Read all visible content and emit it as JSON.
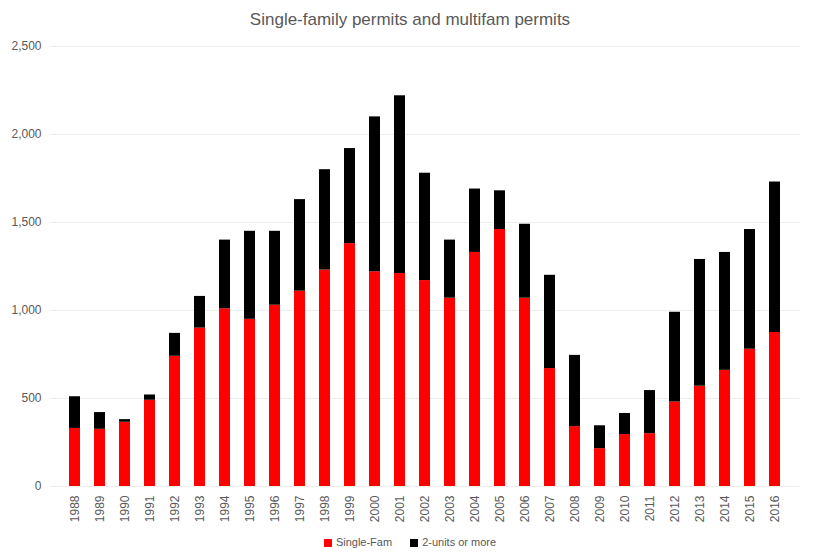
{
  "chart_data": {
    "type": "bar",
    "title": "Single-family permits and multifam permits",
    "categories": [
      "1988",
      "1989",
      "1990",
      "1991",
      "1992",
      "1993",
      "1994",
      "1995",
      "1996",
      "1997",
      "1998",
      "1999",
      "2000",
      "2001",
      "2002",
      "2003",
      "2004",
      "2005",
      "2006",
      "2007",
      "2008",
      "2009",
      "2010",
      "2011",
      "2012",
      "2013",
      "2014",
      "2015",
      "2016"
    ],
    "series": [
      {
        "name": "Single-Fam",
        "color": "#ff0000",
        "values": [
          330,
          325,
          365,
          490,
          740,
          900,
          1010,
          950,
          1030,
          1110,
          1230,
          1380,
          1220,
          1210,
          1170,
          1070,
          1330,
          1460,
          1070,
          670,
          340,
          215,
          295,
          300,
          480,
          570,
          660,
          780,
          875
        ]
      },
      {
        "name": "2-units or more",
        "color": "#000000",
        "values": [
          180,
          95,
          15,
          30,
          130,
          180,
          390,
          500,
          420,
          520,
          570,
          540,
          880,
          1010,
          610,
          330,
          360,
          220,
          420,
          530,
          405,
          130,
          120,
          245,
          510,
          720,
          670,
          680,
          855
        ]
      }
    ],
    "stacked": true,
    "ylim": [
      0,
      2500
    ],
    "yticks": [
      0,
      500,
      1000,
      1500,
      2000,
      2500
    ],
    "grid": true,
    "legend": "bottom"
  }
}
